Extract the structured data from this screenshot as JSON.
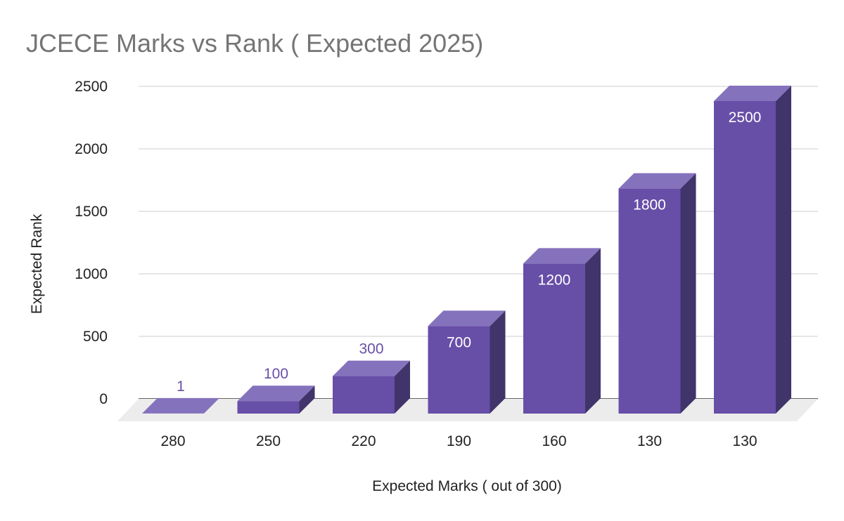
{
  "chart_data": {
    "type": "bar",
    "title": "JCECE Marks vs Rank ( Expected 2025)",
    "xlabel": "Expected Marks ( out of 300)",
    "ylabel": "Expected Rank",
    "categories": [
      "280",
      "250",
      "220",
      "190",
      "160",
      "130",
      "130"
    ],
    "series": [
      {
        "values": [
          1,
          100,
          300,
          700,
          1200,
          1800,
          2500
        ]
      }
    ],
    "data_labels": [
      "1",
      "100",
      "300",
      "700",
      "1200",
      "1800",
      "2500"
    ],
    "yticks": [
      0,
      500,
      1000,
      1500,
      2000,
      2500
    ],
    "ylim": [
      0,
      2500
    ],
    "grid": true,
    "legend": "none",
    "style": "3d",
    "colors": {
      "front": "#674ea7",
      "top": "#8572bd",
      "side": "#41346b",
      "floor": "#ececec",
      "gridline": "#cccccc",
      "label_inside": "#ffffff",
      "label_outside": "#674ea7"
    }
  }
}
